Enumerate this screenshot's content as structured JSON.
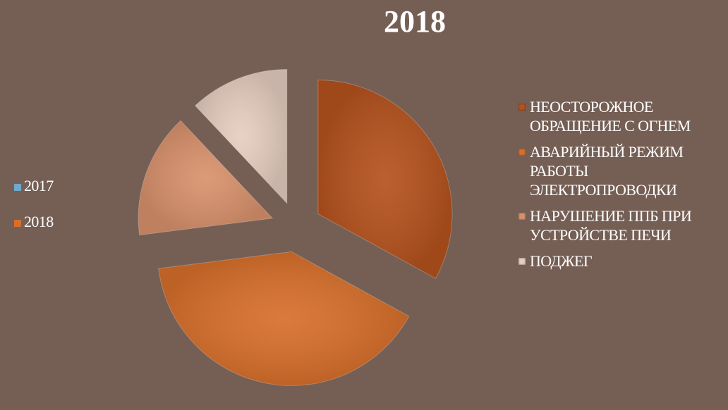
{
  "chart_data": {
    "type": "pie",
    "title": "2018",
    "categories": [
      "НЕОСТОРОЖНОЕ ОБРАЩЕНИЕ С ОГНЕМ",
      "АВАРИЙНЫЙ РЕЖИМ РАБОТЫ ЭЛЕКТРОПРОВОДКИ",
      "НАРУШЕНИЕ ППБ ПРИ УСТРОЙСТВЕ ПЕЧИ",
      "ПОДЖЕГ"
    ],
    "values": [
      33,
      40,
      15,
      12
    ],
    "colors": [
      "#b5521d",
      "#d76f2b",
      "#d8916c",
      "#e6cdc0"
    ],
    "series_legend": [
      {
        "name": "2017",
        "color": "#6fa8c8"
      },
      {
        "name": "2018",
        "color": "#d76f2b"
      }
    ]
  }
}
